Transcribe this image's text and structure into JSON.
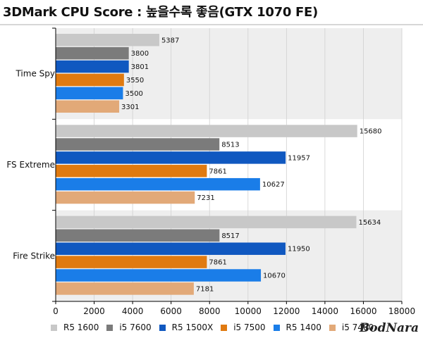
{
  "header": {
    "title": "3DMark CPU Score : 높을수록 좋음(GTX 1070 FE)"
  },
  "watermark": "BodNara",
  "colors": {
    "band_light": "#eeeeee",
    "band_white": "#ffffff",
    "grid": "#d0d0d0",
    "axis": "#000000"
  },
  "chart_data": {
    "type": "bar",
    "orientation": "horizontal",
    "title": "3DMark CPU Score : 높을수록 좋음(GTX 1070 FE)",
    "categories": [
      "Time Spy",
      "FS Extreme",
      "Fire Strike"
    ],
    "series": [
      {
        "name": "R5 1600",
        "color": "#c8c8c8",
        "values": [
          5387,
          15680,
          15634
        ]
      },
      {
        "name": "i5 7600",
        "color": "#7b7b7b",
        "values": [
          3800,
          8513,
          8517
        ]
      },
      {
        "name": "R5 1500X",
        "color": "#1058c0",
        "values": [
          3801,
          11957,
          11950
        ]
      },
      {
        "name": "i5 7500",
        "color": "#e07a10",
        "values": [
          3550,
          7861,
          7861
        ]
      },
      {
        "name": "R5 1400",
        "color": "#1a7de8",
        "values": [
          3500,
          10627,
          10670
        ]
      },
      {
        "name": "i5 7400",
        "color": "#e2a978",
        "values": [
          3301,
          7231,
          7181
        ]
      }
    ],
    "xlim": [
      0,
      18000
    ],
    "xticks": [
      "0",
      "2000",
      "4000",
      "6000",
      "8000",
      "10000",
      "12000",
      "14000",
      "16000",
      "18000"
    ],
    "grid": true,
    "legend_position": "bottom"
  }
}
